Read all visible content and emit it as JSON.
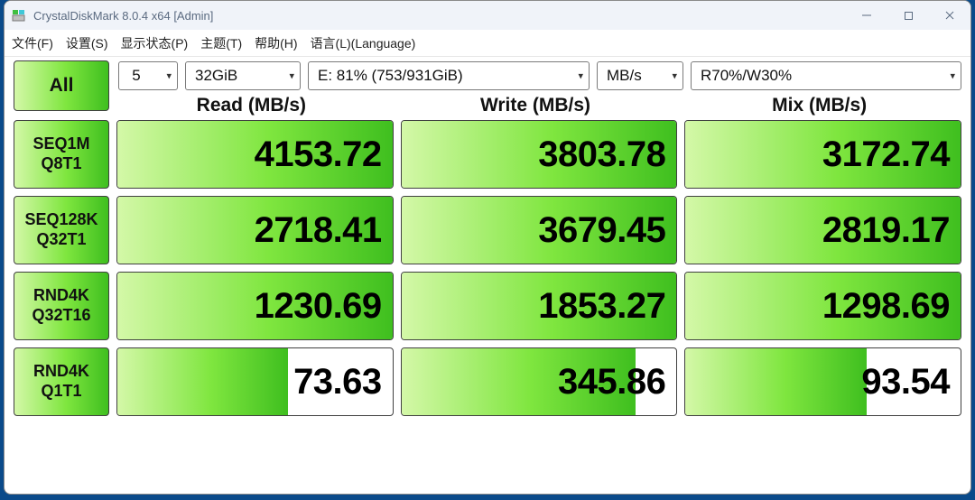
{
  "colors": {
    "titlebar_bg": "#f0f3f9",
    "titlebar_text": "#5a6a80",
    "window_border": "#8a8a8a",
    "cell_border": "#404040",
    "desktop_bg": "#0a4a8a",
    "icon_green": "#3fbf3f",
    "icon_cyan": "#40c8d8"
  },
  "title": "CrystalDiskMark 8.0.4 x64 [Admin]",
  "menu": [
    "文件(F)",
    "设置(S)",
    "显示状态(P)",
    "主题(T)",
    "帮助(H)",
    "语言(L)(Language)"
  ],
  "toolbar": {
    "all_label": "All",
    "runs": "5",
    "size": "32GiB",
    "drive": "E: 81% (753/931GiB)",
    "unit": "MB/s",
    "profile": "R70%/W30%"
  },
  "headers": [
    "Read (MB/s)",
    "Write (MB/s)",
    "Mix (MB/s)"
  ],
  "gradient": {
    "light": "#d4f8a8",
    "mid": "#7fe63f",
    "dark": "#3fbf1f"
  },
  "rows": [
    {
      "label1": "SEQ1M",
      "label2": "Q8T1",
      "read": "4153.72",
      "write": "3803.78",
      "mix": "3172.74",
      "fill": [
        1.0,
        1.0,
        1.0
      ]
    },
    {
      "label1": "SEQ128K",
      "label2": "Q32T1",
      "read": "2718.41",
      "write": "3679.45",
      "mix": "2819.17",
      "fill": [
        1.0,
        1.0,
        1.0
      ]
    },
    {
      "label1": "RND4K",
      "label2": "Q32T16",
      "read": "1230.69",
      "write": "1853.27",
      "mix": "1298.69",
      "fill": [
        1.0,
        1.0,
        1.0
      ]
    },
    {
      "label1": "RND4K",
      "label2": "Q1T1",
      "read": "73.63",
      "write": "345.86",
      "mix": "93.54",
      "fill": [
        0.62,
        0.85,
        0.66
      ]
    }
  ],
  "all_button_fill": 1.0
}
